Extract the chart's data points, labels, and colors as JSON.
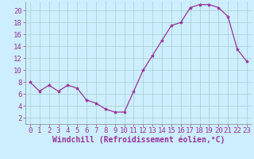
{
  "x": [
    0,
    1,
    2,
    3,
    4,
    5,
    6,
    7,
    8,
    9,
    10,
    11,
    12,
    13,
    14,
    15,
    16,
    17,
    18,
    19,
    20,
    21,
    22,
    23
  ],
  "y": [
    8.0,
    6.5,
    7.5,
    6.5,
    7.5,
    7.0,
    5.0,
    4.5,
    3.5,
    3.0,
    3.0,
    6.5,
    10.0,
    12.5,
    15.0,
    17.5,
    18.0,
    20.5,
    21.0,
    21.0,
    20.5,
    19.0,
    13.5,
    11.5
  ],
  "line_color": "#993399",
  "marker": "*",
  "marker_color": "#993399",
  "bg_color": "#cceeff",
  "grid_color": "#aacccc",
  "xlabel": "Windchill (Refroidissement éolien,°C)",
  "xlim": [
    -0.5,
    23.5
  ],
  "ylim": [
    1,
    21.5
  ],
  "yticks": [
    2,
    4,
    6,
    8,
    10,
    12,
    14,
    16,
    18,
    20
  ],
  "xticks": [
    0,
    1,
    2,
    3,
    4,
    5,
    6,
    7,
    8,
    9,
    10,
    11,
    12,
    13,
    14,
    15,
    16,
    17,
    18,
    19,
    20,
    21,
    22,
    23
  ],
  "font_color": "#993399",
  "tick_font_size": 6.5,
  "label_font_size": 7,
  "marker_size": 3,
  "linewidth": 0.9
}
